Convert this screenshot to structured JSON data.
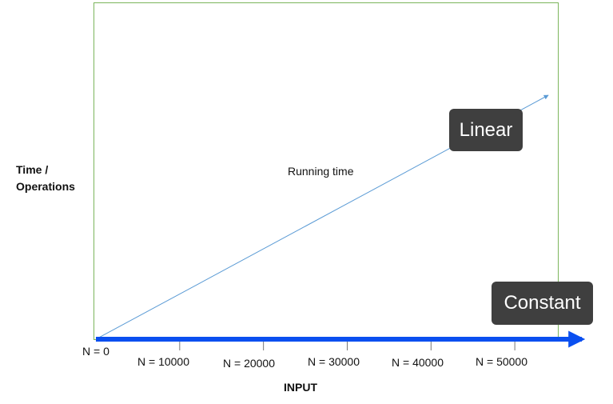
{
  "chart_data": {
    "type": "line",
    "xlabel": "INPUT",
    "ylabel_lines": [
      "Time /",
      "Operations"
    ],
    "origin_label": "N = 0",
    "x_tick_labels": [
      "N = 10000",
      "N = 20000",
      "N = 30000",
      "N = 40000",
      "N = 50000"
    ],
    "x_ticks": [
      10000,
      20000,
      30000,
      40000,
      50000
    ],
    "series": [
      {
        "label": "Running time",
        "tag": "Linear",
        "color": "#5b9bd5",
        "points": [
          [
            0,
            0
          ],
          [
            54000,
            305
          ]
        ]
      },
      {
        "tag": "Constant",
        "color": "#0a4ff0",
        "points": [
          [
            0,
            0
          ],
          [
            58000,
            0
          ]
        ]
      }
    ],
    "xlim": [
      0,
      58000
    ],
    "ylim": [
      0,
      400
    ]
  }
}
